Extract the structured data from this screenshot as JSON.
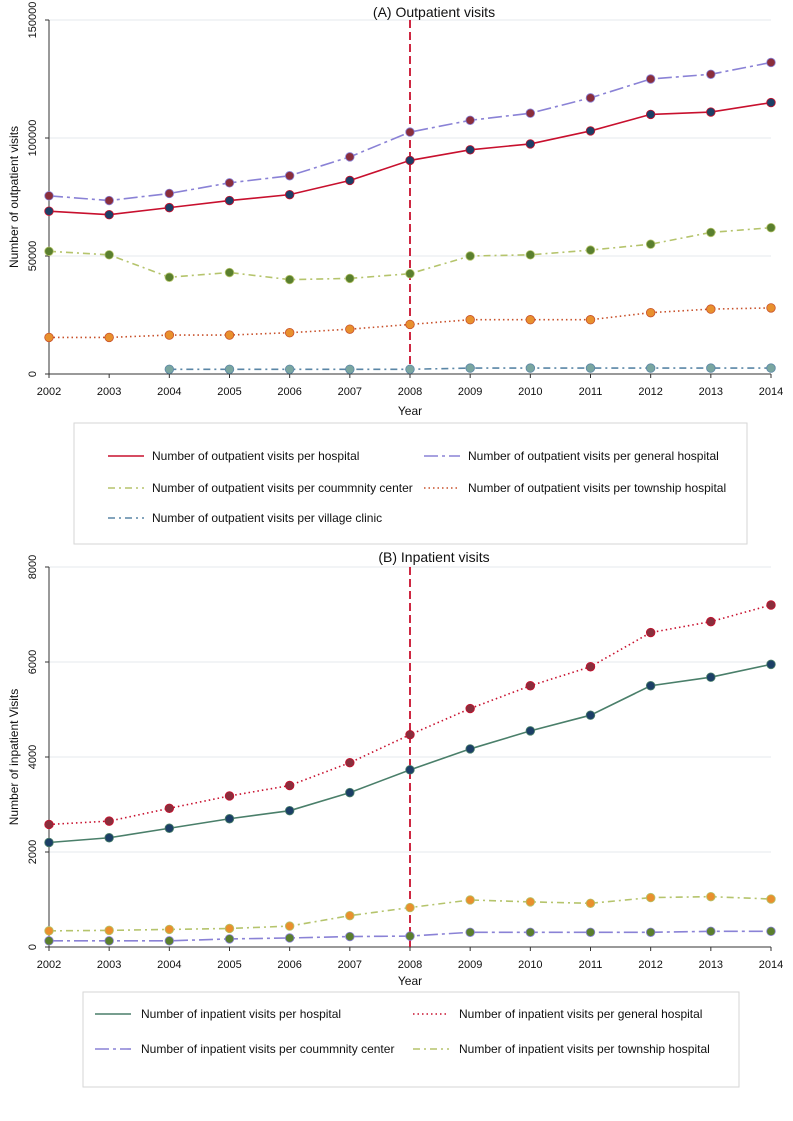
{
  "chart_data": [
    {
      "id": "panel_a",
      "type": "line",
      "title": "(A) Outpatient visits",
      "xlabel": "Year",
      "ylabel": "Number of outpatient visits",
      "x": [
        2002,
        2003,
        2004,
        2005,
        2006,
        2007,
        2008,
        2009,
        2010,
        2011,
        2012,
        2013,
        2014
      ],
      "xlim": [
        2002,
        2014
      ],
      "ylim": [
        0,
        150000
      ],
      "yticks": [
        0,
        50000,
        100000,
        150000
      ],
      "grid": true,
      "reference_line": {
        "x": 2008,
        "color": "#c8102e",
        "style": "dashed"
      },
      "series": [
        {
          "name": "Number of outpatient visits per hospital",
          "color": "#c8102e",
          "marker_color": "#1c3f66",
          "dash": "solid",
          "values": [
            69000,
            67500,
            70500,
            73500,
            76000,
            82000,
            90500,
            95000,
            97500,
            103000,
            110000,
            111000,
            115000
          ]
        },
        {
          "name": "Number of outpatient visits per general hospital",
          "color": "#8a82d6",
          "marker_color": "#8a2e3c",
          "dash": "longdash_dot",
          "values": [
            75500,
            73500,
            76500,
            81000,
            84000,
            92000,
            102500,
            107500,
            110500,
            117000,
            125000,
            127000,
            132000
          ]
        },
        {
          "name": "Number of outpatient visits per coummnity center",
          "color": "#b5c46c",
          "marker_color": "#5a7f2e",
          "dash": "dash_dot",
          "values": [
            52000,
            50500,
            41000,
            43000,
            40000,
            40500,
            42500,
            50000,
            50500,
            52500,
            55000,
            60000,
            62000
          ]
        },
        {
          "name": "Number of outpatient visits per township hospital",
          "color": "#c8502a",
          "marker_color": "#e8902e",
          "dash": "dotted",
          "values": [
            15500,
            15500,
            16500,
            16500,
            17500,
            19000,
            21000,
            23000,
            23000,
            23000,
            26000,
            27500,
            28000
          ]
        },
        {
          "name": "Number of outpatient visits per village clinic",
          "color": "#5a86a6",
          "marker_color": "#7aa6a0",
          "dash": "dash_dot",
          "values": [
            null,
            null,
            2000,
            2000,
            2000,
            2000,
            2000,
            2500,
            2500,
            2500,
            2500,
            2500,
            2500
          ]
        }
      ],
      "legend": {
        "placement": "below",
        "columns": 2
      }
    },
    {
      "id": "panel_b",
      "type": "line",
      "title": "(B) Inpatient visits",
      "xlabel": "Year",
      "ylabel": "Number of inpatient Visits",
      "x": [
        2002,
        2003,
        2004,
        2005,
        2006,
        2007,
        2008,
        2009,
        2010,
        2011,
        2012,
        2013,
        2014
      ],
      "xlim": [
        2002,
        2014
      ],
      "ylim": [
        0,
        8000
      ],
      "yticks": [
        0,
        2000,
        4000,
        6000,
        8000
      ],
      "grid": true,
      "reference_line": {
        "x": 2008,
        "color": "#c8102e",
        "style": "dashed"
      },
      "series": [
        {
          "name": "Number of inpatient visits per hospital",
          "color": "#4a7f6a",
          "marker_color": "#1c3f66",
          "dash": "solid",
          "values": [
            2200,
            2300,
            2500,
            2700,
            2870,
            3250,
            3730,
            4170,
            4550,
            4880,
            5500,
            5680,
            5950
          ]
        },
        {
          "name": "Number of inpatient visits per general hospital",
          "color": "#c8102e",
          "marker_color": "#8a2e3c",
          "dash": "dotted",
          "values": [
            2580,
            2650,
            2920,
            3180,
            3400,
            3880,
            4470,
            5020,
            5500,
            5900,
            6620,
            6850,
            7200
          ]
        },
        {
          "name": "Number of inpatient visits per coummnity center",
          "color": "#8a82d6",
          "marker_color": "#5a7f2e",
          "dash": "longdash_dot",
          "values": [
            130,
            130,
            130,
            170,
            190,
            220,
            230,
            310,
            310,
            310,
            310,
            330,
            330
          ]
        },
        {
          "name": "Number of inpatient visits per township hospital",
          "color": "#b5c46c",
          "marker_color": "#e8902e",
          "dash": "dash_dot",
          "values": [
            340,
            350,
            370,
            390,
            440,
            660,
            830,
            990,
            950,
            920,
            1040,
            1060,
            1010
          ]
        }
      ],
      "legend": {
        "placement": "below",
        "columns": 2
      }
    }
  ]
}
